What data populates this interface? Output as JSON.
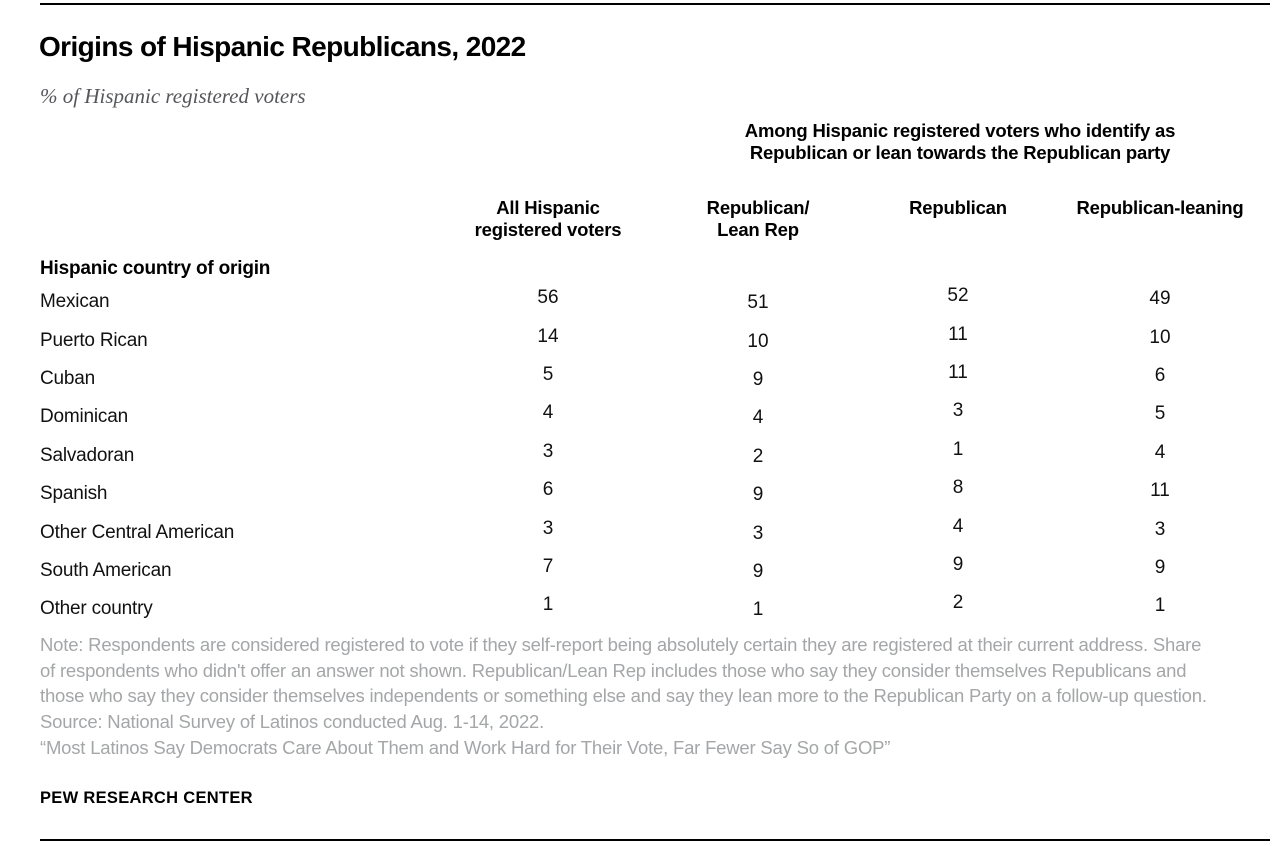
{
  "header": {
    "title": "Origins of Hispanic Republicans, 2022",
    "subtitle": "% of Hispanic registered voters"
  },
  "table": {
    "spanner": "Among Hispanic registered voters who identify as\nRepublican or lean towards the Republican party",
    "columns": [
      "All Hispanic\nregistered voters",
      "Republican/\nLean Rep",
      "Republican",
      "Republican-leaning"
    ],
    "section_header": "Hispanic country of origin",
    "rows": [
      {
        "label": "Mexican",
        "values": [
          "56",
          "51",
          "52",
          "49"
        ]
      },
      {
        "label": "Puerto Rican",
        "values": [
          "14",
          "10",
          "11",
          "10"
        ]
      },
      {
        "label": "Cuban",
        "values": [
          "5",
          "9",
          "11",
          "6"
        ]
      },
      {
        "label": "Dominican",
        "values": [
          "4",
          "4",
          "3",
          "5"
        ]
      },
      {
        "label": "Salvadoran",
        "values": [
          "3",
          "2",
          "1",
          "4"
        ]
      },
      {
        "label": "Spanish",
        "values": [
          "6",
          "9",
          "8",
          "11"
        ]
      },
      {
        "label": "Other Central American",
        "values": [
          "3",
          "3",
          "4",
          "3"
        ]
      },
      {
        "label": "South American",
        "values": [
          "7",
          "9",
          "9",
          "9"
        ]
      },
      {
        "label": "Other country",
        "values": [
          "1",
          "1",
          "2",
          "1"
        ]
      }
    ]
  },
  "footer": {
    "note": "Note: Respondents are considered registered to vote if they self-report being absolutely certain they are registered at their current address. Share of respondents who didn't offer an answer not shown. Republican/Lean Rep includes those who say they consider themselves Republicans and those who say they consider themselves independents or something else and say they lean more to the Republican Party on a follow-up question.",
    "source": "Source: National Survey of Latinos conducted Aug. 1-14, 2022.",
    "report": "“Most Latinos Say Democrats Care About Them and Work Hard for Their Vote, Far Fewer Say So of GOP”",
    "wordmark": "PEW RESEARCH CENTER"
  },
  "chart_data": {
    "type": "table",
    "title": "Origins of Hispanic Republicans, 2022",
    "subtitle": "% of Hispanic registered voters",
    "group_header": "Among Hispanic registered voters who identify as Republican or lean towards the Republican party",
    "row_group_label": "Hispanic country of origin",
    "categories": [
      "Mexican",
      "Puerto Rican",
      "Cuban",
      "Dominican",
      "Salvadoran",
      "Spanish",
      "Other Central American",
      "South American",
      "Other country"
    ],
    "series": [
      {
        "name": "All Hispanic registered voters",
        "values": [
          56,
          14,
          5,
          4,
          3,
          6,
          3,
          7,
          1
        ]
      },
      {
        "name": "Republican/Lean Rep",
        "values": [
          51,
          10,
          9,
          4,
          2,
          9,
          3,
          9,
          1
        ]
      },
      {
        "name": "Republican",
        "values": [
          52,
          11,
          11,
          3,
          1,
          8,
          4,
          9,
          2
        ]
      },
      {
        "name": "Republican-leaning",
        "values": [
          49,
          10,
          6,
          5,
          4,
          11,
          3,
          9,
          1
        ]
      }
    ],
    "colors": {
      "text": "#000000",
      "note_gray": "#a4a6a8",
      "subtitle_gray": "#55565a"
    }
  }
}
